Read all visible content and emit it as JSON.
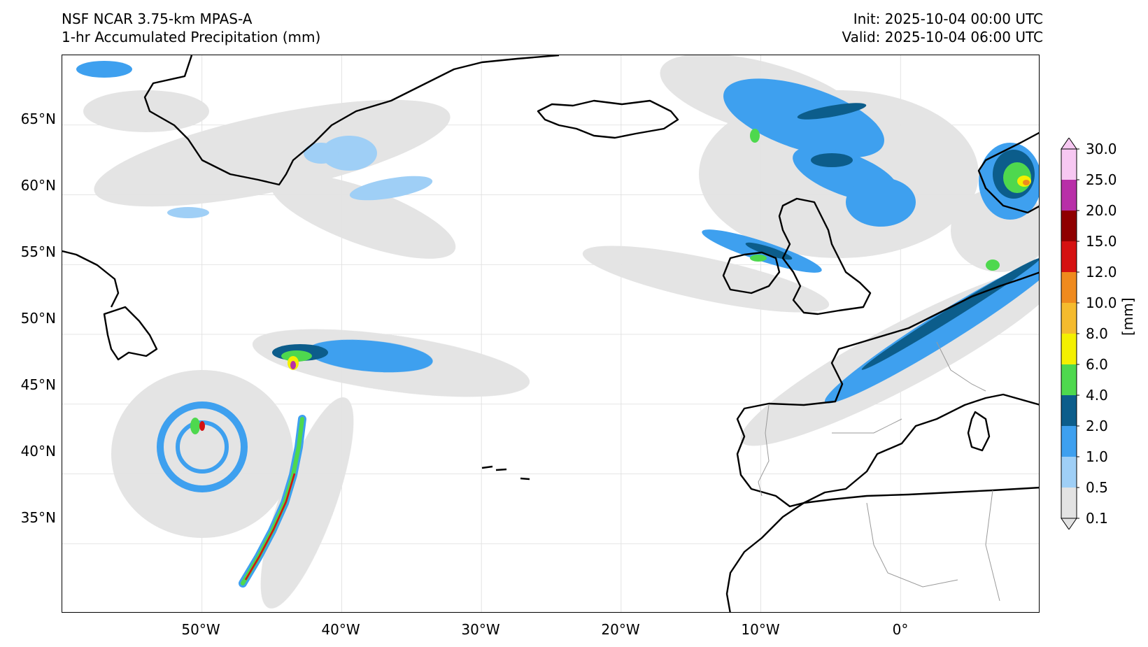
{
  "header": {
    "model": "NSF NCAR 3.75-km MPAS-A",
    "field": "1-hr Accumulated Precipitation (mm)",
    "init": "Init: 2025-10-04 00:00 UTC",
    "valid": "Valid: 2025-10-04 06:00 UTC"
  },
  "map": {
    "lon_range": [
      -60,
      10
    ],
    "lat_range": [
      30,
      70
    ],
    "lat_labels": [
      "65°N",
      "60°N",
      "55°N",
      "50°N",
      "45°N",
      "40°N",
      "35°N"
    ],
    "lon_labels": [
      "50°W",
      "40°W",
      "30°W",
      "20°W",
      "10°W",
      "0°"
    ],
    "gridlines": true
  },
  "colorbar": {
    "unit": "[mm]",
    "levels": [
      "0.1",
      "0.5",
      "1.0",
      "2.0",
      "4.0",
      "6.0",
      "8.0",
      "10.0",
      "12.0",
      "15.0",
      "20.0",
      "25.0",
      "30.0"
    ],
    "colors": [
      "#e3e3e3",
      "#9fcff6",
      "#3ea0ef",
      "#0c5d8b",
      "#4ed84e",
      "#f4f000",
      "#f5bb2e",
      "#ef8a1e",
      "#d51111",
      "#8f0000",
      "#b82fa8",
      "#f7c8f2"
    ]
  }
}
